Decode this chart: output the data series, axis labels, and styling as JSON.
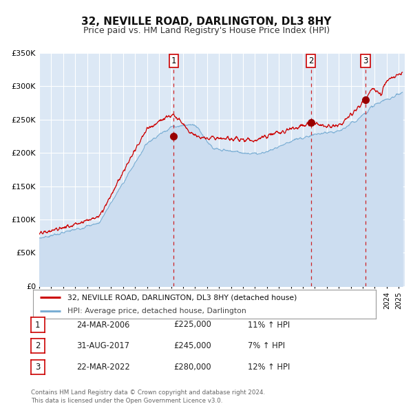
{
  "title": "32, NEVILLE ROAD, DARLINGTON, DL3 8HY",
  "subtitle": "Price paid vs. HM Land Registry's House Price Index (HPI)",
  "background_color": "#ffffff",
  "plot_bg_color": "#dce8f5",
  "grid_color": "#ffffff",
  "red_line_color": "#cc0000",
  "blue_line_color": "#7aaed4",
  "blue_fill_color": "#ccddf0",
  "ylim": [
    0,
    350000
  ],
  "yticks": [
    0,
    50000,
    100000,
    150000,
    200000,
    250000,
    300000,
    350000
  ],
  "ytick_labels": [
    "£0",
    "£50K",
    "£100K",
    "£150K",
    "£200K",
    "£250K",
    "£300K",
    "£350K"
  ],
  "sale_dates_num": [
    2006.22,
    2017.66,
    2022.22
  ],
  "sale_prices": [
    225000,
    245000,
    280000
  ],
  "sale_labels": [
    "1",
    "2",
    "3"
  ],
  "vline_color": "#cc0000",
  "marker_color": "#990000",
  "legend_label_red": "32, NEVILLE ROAD, DARLINGTON, DL3 8HY (detached house)",
  "legend_label_blue": "HPI: Average price, detached house, Darlington",
  "table_rows": [
    {
      "num": "1",
      "date": "24-MAR-2006",
      "price": "£225,000",
      "hpi": "11% ↑ HPI"
    },
    {
      "num": "2",
      "date": "31-AUG-2017",
      "price": "£245,000",
      "hpi": "7% ↑ HPI"
    },
    {
      "num": "3",
      "date": "22-MAR-2022",
      "price": "£280,000",
      "hpi": "12% ↑ HPI"
    }
  ],
  "footer": "Contains HM Land Registry data © Crown copyright and database right 2024.\nThis data is licensed under the Open Government Licence v3.0.",
  "xmin": 1995.0,
  "xmax": 2025.5,
  "title_fontsize": 11,
  "subtitle_fontsize": 9
}
